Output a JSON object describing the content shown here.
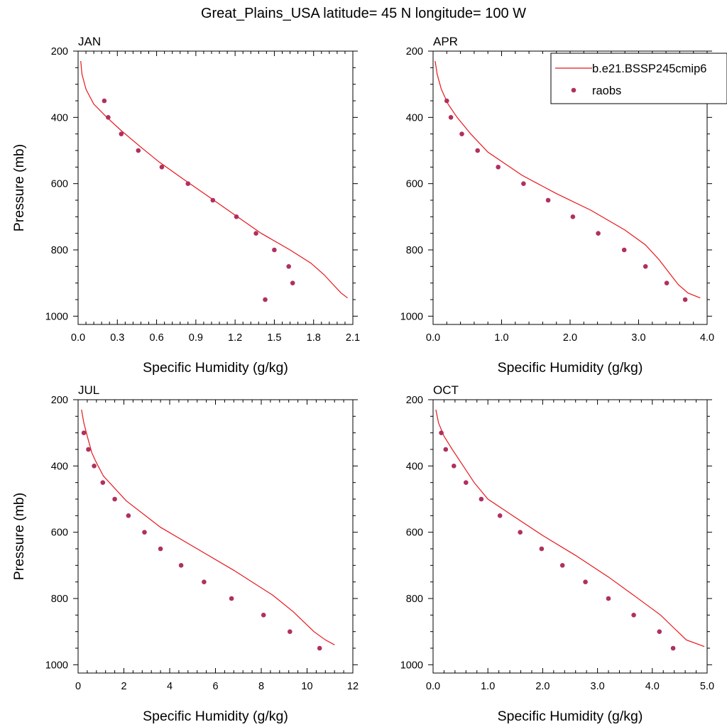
{
  "title": "Great_Plains_USA  latitude= 45 N longitude= 100 W",
  "colors": {
    "model": "#e8161b",
    "obs": "#b03060",
    "axis": "#000000"
  },
  "legend": {
    "placement": "top-right of APR panel",
    "model_label": "b.e21.BSSP245cmip6",
    "obs_label": "raobs"
  },
  "chart_data": [
    {
      "type": "line",
      "panel": "JAN",
      "xlabel": "Specific Humidity (g/kg)",
      "ylabel": "Pressure (mb)",
      "xlim": [
        0,
        2.1
      ],
      "ylim": [
        200,
        1025
      ],
      "y_inverted": true,
      "xticks": [
        "0.0",
        "0.3",
        "0.6",
        "0.9",
        "1.2",
        "1.5",
        "1.8",
        "2.1"
      ],
      "yticks": [
        "200",
        "400",
        "600",
        "800",
        "1000"
      ],
      "series": [
        {
          "name": "b.e21.BSSP245cmip6",
          "style": "line",
          "x": [
            0.02,
            0.03,
            0.06,
            0.12,
            0.22,
            0.33,
            0.48,
            0.62,
            0.8,
            1.0,
            1.2,
            1.4,
            1.62,
            1.78,
            1.88,
            1.95,
            2.01,
            2.06
          ],
          "y": [
            230,
            270,
            315,
            360,
            400,
            440,
            490,
            535,
            585,
            640,
            695,
            750,
            800,
            840,
            875,
            905,
            930,
            945
          ]
        },
        {
          "name": "raobs",
          "style": "markers",
          "x": [
            0.2,
            0.23,
            0.33,
            0.46,
            0.64,
            0.84,
            1.03,
            1.21,
            1.36,
            1.5,
            1.61,
            1.64,
            1.43
          ],
          "y": [
            350,
            400,
            450,
            500,
            550,
            600,
            650,
            700,
            750,
            800,
            850,
            900,
            950
          ]
        }
      ]
    },
    {
      "type": "line",
      "panel": "APR",
      "xlabel": "Specific Humidity (g/kg)",
      "ylabel": "",
      "xlim": [
        0,
        4
      ],
      "ylim": [
        200,
        1025
      ],
      "y_inverted": true,
      "xticks": [
        "0.0",
        "1.0",
        "2.0",
        "3.0",
        "4.0"
      ],
      "yticks": [
        "200",
        "400",
        "600",
        "800",
        "1000"
      ],
      "series": [
        {
          "name": "b.e21.BSSP245cmip6",
          "style": "line",
          "x": [
            0.03,
            0.06,
            0.12,
            0.22,
            0.35,
            0.55,
            0.8,
            1.3,
            1.8,
            2.3,
            2.8,
            3.1,
            3.3,
            3.45,
            3.58,
            3.72,
            3.9
          ],
          "y": [
            230,
            270,
            315,
            360,
            400,
            450,
            505,
            575,
            630,
            680,
            740,
            785,
            830,
            870,
            905,
            930,
            945
          ]
        },
        {
          "name": "raobs",
          "style": "markers",
          "x": [
            0.2,
            0.26,
            0.42,
            0.65,
            0.95,
            1.32,
            1.68,
            2.04,
            2.41,
            2.79,
            3.1,
            3.41,
            3.68
          ],
          "y": [
            350,
            400,
            450,
            500,
            550,
            600,
            650,
            700,
            750,
            800,
            850,
            900,
            950
          ]
        }
      ]
    },
    {
      "type": "line",
      "panel": "JUL",
      "xlabel": "Specific Humidity (g/kg)",
      "ylabel": "Pressure (mb)",
      "xlim": [
        0,
        12
      ],
      "ylim": [
        200,
        1025
      ],
      "y_inverted": true,
      "xticks": [
        "0",
        "2",
        "4",
        "6",
        "8",
        "10",
        "12"
      ],
      "yticks": [
        "200",
        "400",
        "600",
        "800",
        "1000"
      ],
      "series": [
        {
          "name": "b.e21.BSSP245cmip6",
          "style": "line",
          "x": [
            0.15,
            0.25,
            0.4,
            0.6,
            0.8,
            1.1,
            2.1,
            3.6,
            5.2,
            6.8,
            8.5,
            9.4,
            10.3,
            10.8,
            11.2
          ],
          "y": [
            230,
            270,
            310,
            360,
            390,
            430,
            505,
            585,
            650,
            715,
            790,
            840,
            900,
            925,
            940
          ]
        },
        {
          "name": "raobs",
          "style": "markers",
          "x": [
            0.25,
            0.45,
            0.7,
            1.08,
            1.6,
            2.2,
            2.9,
            3.6,
            4.5,
            5.5,
            6.7,
            8.1,
            9.25,
            10.55
          ],
          "y": [
            300,
            350,
            400,
            450,
            500,
            550,
            600,
            650,
            700,
            750,
            800,
            850,
            900,
            950
          ]
        }
      ]
    },
    {
      "type": "line",
      "panel": "OCT",
      "xlabel": "Specific Humidity (g/kg)",
      "ylabel": "",
      "xlim": [
        0,
        5
      ],
      "ylim": [
        200,
        1025
      ],
      "y_inverted": true,
      "xticks": [
        "0.0",
        "1.0",
        "2.0",
        "3.0",
        "4.0",
        "5.0"
      ],
      "yticks": [
        "200",
        "400",
        "600",
        "800",
        "1000"
      ],
      "series": [
        {
          "name": "b.e21.BSSP245cmip6",
          "style": "line",
          "x": [
            0.05,
            0.1,
            0.2,
            0.35,
            0.55,
            0.75,
            1.0,
            1.5,
            2.0,
            2.6,
            3.2,
            3.7,
            4.15,
            4.4,
            4.62,
            4.95
          ],
          "y": [
            230,
            270,
            310,
            350,
            400,
            450,
            500,
            555,
            610,
            670,
            735,
            795,
            850,
            890,
            925,
            945
          ]
        },
        {
          "name": "raobs",
          "style": "markers",
          "x": [
            0.15,
            0.23,
            0.38,
            0.6,
            0.88,
            1.22,
            1.59,
            1.98,
            2.36,
            2.78,
            3.2,
            3.66,
            4.13,
            4.38
          ],
          "y": [
            300,
            350,
            400,
            450,
            500,
            550,
            600,
            650,
            700,
            750,
            800,
            850,
            900,
            950
          ]
        }
      ]
    }
  ]
}
